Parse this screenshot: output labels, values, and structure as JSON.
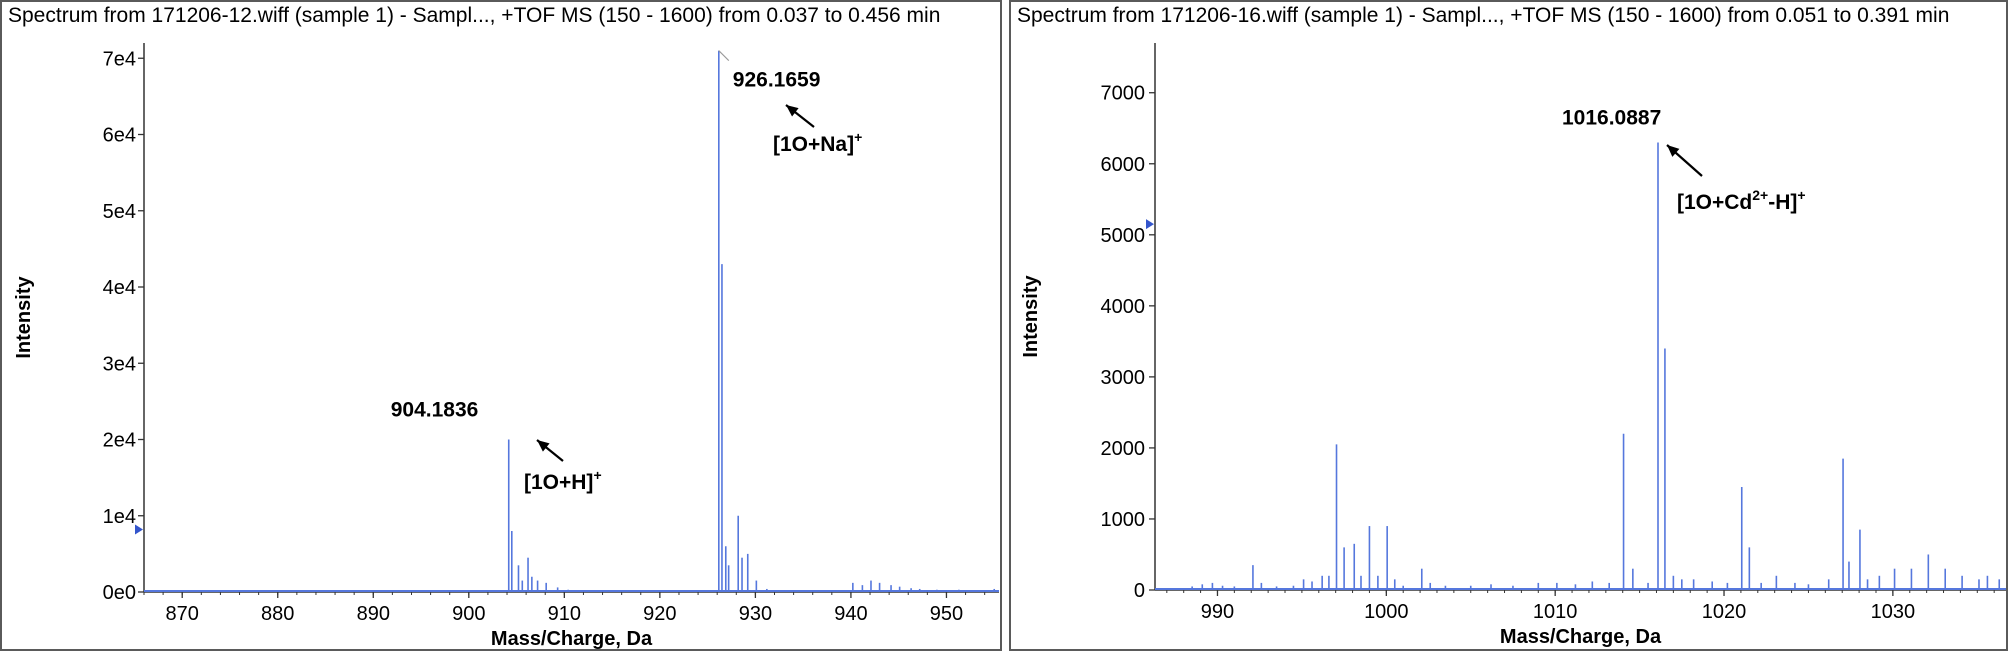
{
  "chart_data": [
    {
      "type": "line",
      "title": "Spectrum from 171206-12.wiff (sample 1) - Sampl..., +TOF MS (150 - 1600) from 0.037 to 0.456 min",
      "xlabel": "Mass/Charge, Da",
      "ylabel": "Intensity",
      "xlim": [
        866,
        955.5
      ],
      "ylim": [
        0,
        72000
      ],
      "x_ticks": [
        870,
        880,
        890,
        900,
        910,
        920,
        930,
        940,
        950
      ],
      "y_ticks": [
        {
          "value": 0,
          "label": "0e0"
        },
        {
          "value": 10000,
          "label": "1e4"
        },
        {
          "value": 20000,
          "label": "2e4"
        },
        {
          "value": 30000,
          "label": "3e4"
        },
        {
          "value": 40000,
          "label": "4e4"
        },
        {
          "value": 50000,
          "label": "5e4"
        },
        {
          "value": 60000,
          "label": "6e4"
        },
        {
          "value": 70000,
          "label": "7e4"
        }
      ],
      "color": "#5577dd",
      "peaks": [
        [
          872.5,
          150
        ],
        [
          880.2,
          100
        ],
        [
          889.3,
          120
        ],
        [
          897.8,
          150
        ],
        [
          904.18,
          20000
        ],
        [
          904.5,
          8000
        ],
        [
          905.2,
          3500
        ],
        [
          905.6,
          1500
        ],
        [
          906.2,
          4500
        ],
        [
          906.6,
          2000
        ],
        [
          907.2,
          1500
        ],
        [
          908.1,
          1200
        ],
        [
          909.3,
          600
        ],
        [
          910.4,
          300
        ],
        [
          915.0,
          200
        ],
        [
          920.0,
          150
        ],
        [
          926.17,
          71000
        ],
        [
          926.5,
          43000
        ],
        [
          926.9,
          6000
        ],
        [
          927.2,
          3500
        ],
        [
          928.2,
          10000
        ],
        [
          928.6,
          4500
        ],
        [
          929.2,
          5000
        ],
        [
          930.1,
          1500
        ],
        [
          931.2,
          400
        ],
        [
          933.0,
          200
        ],
        [
          936.0,
          200
        ],
        [
          940.2,
          1200
        ],
        [
          941.2,
          900
        ],
        [
          942.1,
          1500
        ],
        [
          943.0,
          1200
        ],
        [
          944.2,
          900
        ],
        [
          945.1,
          700
        ],
        [
          946.3,
          500
        ],
        [
          947.2,
          400
        ],
        [
          949.0,
          300
        ],
        [
          950.1,
          200
        ],
        [
          951.3,
          300
        ],
        [
          953.2,
          200
        ],
        [
          955.0,
          400
        ]
      ],
      "annotations": [
        {
          "id": "peak-label-904",
          "text": "904.1836",
          "x": 904.18,
          "y": 20000
        },
        {
          "id": "peak-label-926",
          "text": "926.1659",
          "x": 926.17,
          "y": 71000
        }
      ],
      "ion_labels": [
        {
          "id": "ion-label-1o-h",
          "base": "[1O+H]",
          "superscript": "+"
        },
        {
          "id": "ion-label-1o-na",
          "base": "[1O+Na]",
          "superscript": "+"
        }
      ]
    },
    {
      "type": "line",
      "title": "Spectrum from 171206-16.wiff (sample 1) - Sampl..., +TOF MS (150 - 1600) from 0.051 to 0.391 min",
      "xlabel": "Mass/Charge, Da",
      "ylabel": "Intensity",
      "xlim": [
        986.3,
        1036.7
      ],
      "ylim": [
        0,
        7700
      ],
      "x_ticks": [
        990,
        1000,
        1010,
        1020,
        1030
      ],
      "y_ticks": [
        {
          "value": 0,
          "label": "0"
        },
        {
          "value": 1000,
          "label": "1000"
        },
        {
          "value": 2000,
          "label": "2000"
        },
        {
          "value": 3000,
          "label": "3000"
        },
        {
          "value": 4000,
          "label": "4000"
        },
        {
          "value": 5000,
          "label": "5000"
        },
        {
          "value": 6000,
          "label": "6000"
        },
        {
          "value": 7000,
          "label": "7000"
        }
      ],
      "color": "#5577dd",
      "peaks": [
        [
          988.5,
          50
        ],
        [
          989.1,
          80
        ],
        [
          989.7,
          100
        ],
        [
          990.3,
          60
        ],
        [
          991.0,
          50
        ],
        [
          992.1,
          350
        ],
        [
          992.6,
          100
        ],
        [
          993.5,
          50
        ],
        [
          994.5,
          60
        ],
        [
          995.1,
          150
        ],
        [
          995.6,
          120
        ],
        [
          996.2,
          200
        ],
        [
          996.6,
          200
        ],
        [
          997.05,
          2050
        ],
        [
          997.5,
          600
        ],
        [
          998.1,
          650
        ],
        [
          998.5,
          200
        ],
        [
          999.0,
          900
        ],
        [
          999.5,
          200
        ],
        [
          1000.05,
          900
        ],
        [
          1000.5,
          150
        ],
        [
          1001.0,
          60
        ],
        [
          1002.1,
          300
        ],
        [
          1002.6,
          100
        ],
        [
          1003.5,
          60
        ],
        [
          1005.0,
          60
        ],
        [
          1006.2,
          80
        ],
        [
          1007.5,
          60
        ],
        [
          1009.0,
          100
        ],
        [
          1010.1,
          100
        ],
        [
          1011.2,
          80
        ],
        [
          1012.2,
          120
        ],
        [
          1013.2,
          100
        ],
        [
          1014.05,
          2200
        ],
        [
          1014.6,
          300
        ],
        [
          1015.5,
          100
        ],
        [
          1016.09,
          6300
        ],
        [
          1016.5,
          3400
        ],
        [
          1017.0,
          200
        ],
        [
          1017.5,
          150
        ],
        [
          1018.2,
          150
        ],
        [
          1019.3,
          120
        ],
        [
          1020.2,
          100
        ],
        [
          1021.05,
          1450
        ],
        [
          1021.5,
          600
        ],
        [
          1022.2,
          100
        ],
        [
          1023.1,
          200
        ],
        [
          1024.2,
          100
        ],
        [
          1025.0,
          80
        ],
        [
          1026.2,
          150
        ],
        [
          1027.05,
          1850
        ],
        [
          1027.4,
          400
        ],
        [
          1028.05,
          850
        ],
        [
          1028.5,
          150
        ],
        [
          1029.2,
          200
        ],
        [
          1030.1,
          300
        ],
        [
          1031.1,
          300
        ],
        [
          1032.1,
          500
        ],
        [
          1033.1,
          300
        ],
        [
          1034.1,
          200
        ],
        [
          1035.1,
          150
        ],
        [
          1035.6,
          200
        ],
        [
          1036.3,
          150
        ]
      ],
      "annotations": [
        {
          "id": "peak-label-1016",
          "text": "1016.0887",
          "x": 1016.09,
          "y": 6300
        }
      ],
      "ion_labels": [
        {
          "id": "ion-label-1o-cd-h",
          "base": "[1O+Cd",
          "superscript": "2+",
          "tail": "-H]",
          "superscript2": "+"
        }
      ]
    }
  ]
}
